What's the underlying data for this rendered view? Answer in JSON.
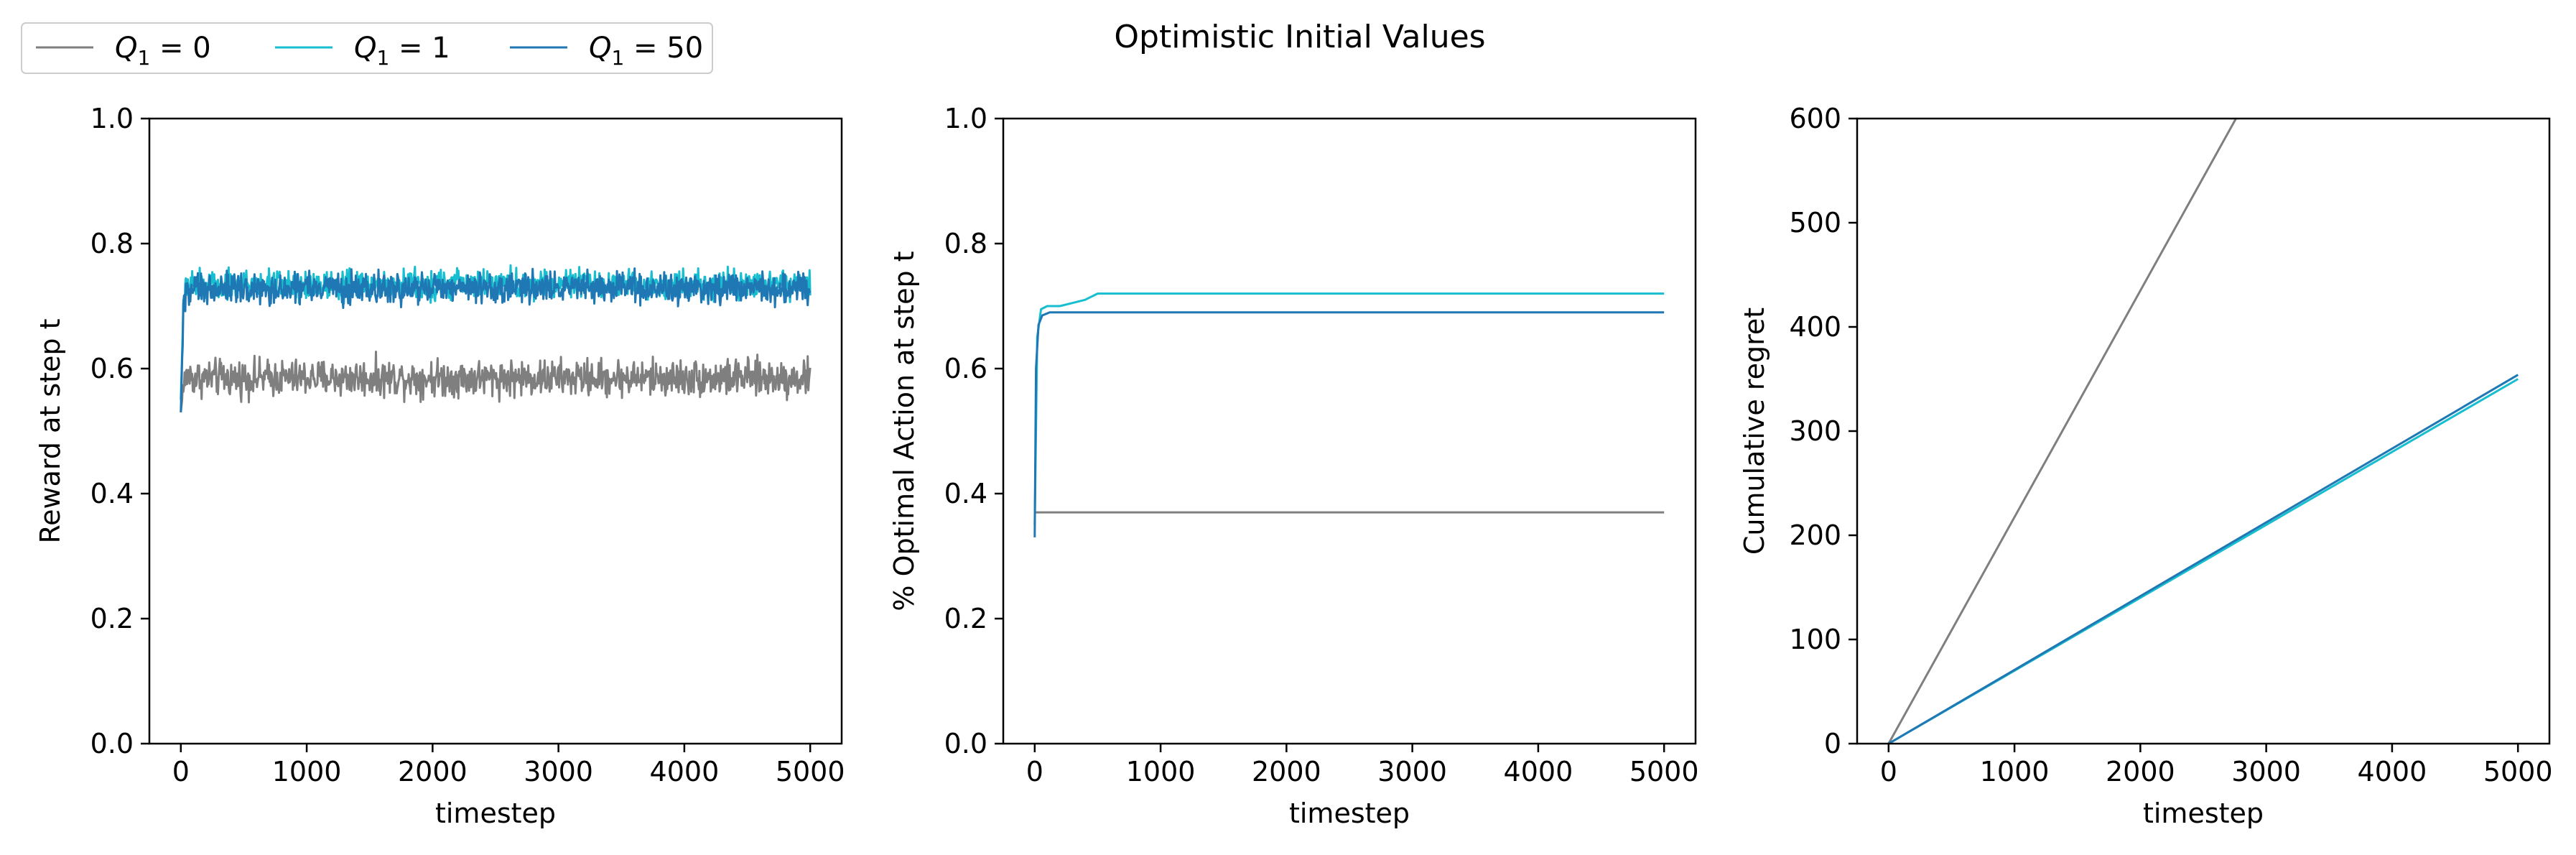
{
  "title": "Optimistic Initial Values",
  "legend": {
    "placement": "top-left",
    "entries": [
      {
        "base": "Q",
        "sub": "1",
        "rest": " = 0",
        "color": "#7f7f7f"
      },
      {
        "base": "Q",
        "sub": "1",
        "rest": " = 1",
        "color": "#17becf"
      },
      {
        "base": "Q",
        "sub": "1",
        "rest": " = 50",
        "color": "#1f77b4"
      }
    ]
  },
  "chart_data": [
    {
      "type": "line",
      "xlabel": "timestep",
      "ylabel": "Reward at step t",
      "xlim": [
        -250,
        5250
      ],
      "ylim": [
        0,
        1
      ],
      "xticks": [
        0,
        1000,
        2000,
        3000,
        4000,
        5000
      ],
      "yticks": [
        0.0,
        0.2,
        0.4,
        0.6,
        0.8,
        1.0
      ],
      "ytick_labels": [
        "0.0",
        "0.2",
        "0.4",
        "0.6",
        "0.8",
        "1.0"
      ],
      "grid": false,
      "series": [
        {
          "name": "Q1 = 0",
          "color": "#7f7f7f",
          "style": "noisy",
          "x": [
            0,
            20,
            50,
            100,
            5000
          ],
          "y": [
            0.53,
            0.57,
            0.59,
            0.585,
            0.585
          ],
          "noise": 0.018
        },
        {
          "name": "Q1 = 1",
          "color": "#17becf",
          "style": "noisy",
          "x": [
            0,
            20,
            50,
            150,
            5000
          ],
          "y": [
            0.55,
            0.7,
            0.73,
            0.735,
            0.735
          ],
          "noise": 0.014
        },
        {
          "name": "Q1 = 50",
          "color": "#1f77b4",
          "style": "noisy",
          "x": [
            0,
            20,
            50,
            150,
            5000
          ],
          "y": [
            0.53,
            0.7,
            0.725,
            0.728,
            0.728
          ],
          "noise": 0.015
        }
      ]
    },
    {
      "type": "line",
      "xlabel": "timestep",
      "ylabel": "% Optimal Action at step t",
      "xlim": [
        -250,
        5250
      ],
      "ylim": [
        0,
        1
      ],
      "xticks": [
        0,
        1000,
        2000,
        3000,
        4000,
        5000
      ],
      "yticks": [
        0.0,
        0.2,
        0.4,
        0.6,
        0.8,
        1.0
      ],
      "ytick_labels": [
        "0.0",
        "0.2",
        "0.4",
        "0.6",
        "0.8",
        "1.0"
      ],
      "grid": false,
      "series": [
        {
          "name": "Q1 = 0",
          "color": "#7f7f7f",
          "x": [
            0,
            5,
            15,
            5000
          ],
          "y": [
            0.37,
            0.37,
            0.37,
            0.37
          ]
        },
        {
          "name": "Q1 = 1",
          "color": "#17becf",
          "x": [
            0,
            20,
            50,
            100,
            200,
            300,
            400,
            500,
            5000
          ],
          "y": [
            0.35,
            0.65,
            0.695,
            0.7,
            0.7,
            0.705,
            0.71,
            0.72,
            0.72
          ]
        },
        {
          "name": "Q1 = 50",
          "color": "#1f77b4",
          "x": [
            0,
            10,
            30,
            60,
            120,
            5000
          ],
          "y": [
            0.33,
            0.6,
            0.67,
            0.685,
            0.69,
            0.69
          ]
        }
      ]
    },
    {
      "type": "line",
      "xlabel": "timestep",
      "ylabel": "Cumulative regret",
      "xlim": [
        -250,
        5250
      ],
      "ylim": [
        0,
        600
      ],
      "xticks": [
        0,
        1000,
        2000,
        3000,
        4000,
        5000
      ],
      "yticks": [
        0,
        100,
        200,
        300,
        400,
        500,
        600
      ],
      "ytick_labels": [
        "0",
        "100",
        "200",
        "300",
        "400",
        "500",
        "600"
      ],
      "grid": false,
      "series": [
        {
          "name": "Q1 = 0",
          "color": "#7f7f7f",
          "x": [
            0,
            5000
          ],
          "y": [
            0,
            1087
          ]
        },
        {
          "name": "Q1 = 1",
          "color": "#17becf",
          "x": [
            0,
            5000
          ],
          "y": [
            0,
            350
          ]
        },
        {
          "name": "Q1 = 50",
          "color": "#1f77b4",
          "x": [
            0,
            5000
          ],
          "y": [
            0,
            354
          ]
        }
      ]
    }
  ]
}
